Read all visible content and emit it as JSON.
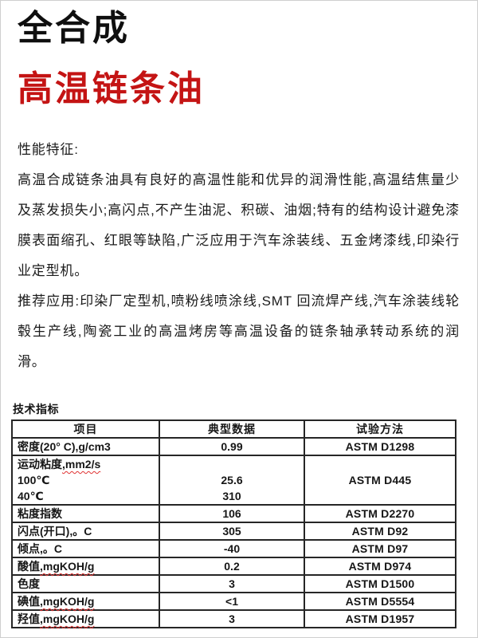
{
  "header": {
    "title_line1": "全合成",
    "title_line2": "高温链条油"
  },
  "performance": {
    "heading": "性能特征:",
    "paragraph": "高温合成链条油具有良好的高温性能和优异的润滑性能,高温结焦量少及蒸发损失小;高闪点,不产生油泥、积碳、油烟;特有的结构设计避免漆膜表面缩孔、红眼等缺陷,广泛应用于汽车涂装线、五金烤漆线,印染行业定型机。"
  },
  "applications": {
    "paragraph": "推荐应用:印染厂定型机,喷粉线喷涂线,SMT 回流焊产线,汽车涂装线轮毂生产线,陶瓷工业的高温烤房等高温设备的链条轴承转动系统的润滑。"
  },
  "specs": {
    "heading": "技术指标",
    "columns": [
      "项目",
      "典型数据",
      "试验方法"
    ],
    "rows": [
      {
        "item": [
          [
            {
              "t": "密度(20° C),g/cm3"
            }
          ]
        ],
        "values": [
          "0.99"
        ],
        "method": "ASTM D1298"
      },
      {
        "item": [
          [
            {
              "t": "运动粘度"
            },
            {
              "t": ",mm2/s",
              "sq": true
            }
          ],
          [
            {
              "t": "100℃"
            }
          ],
          [
            {
              "t": "40℃"
            }
          ]
        ],
        "values": [
          "",
          "25.6",
          "310"
        ],
        "method": "ASTM D445"
      },
      {
        "item": [
          [
            {
              "t": "粘度指数"
            }
          ]
        ],
        "values": [
          "106"
        ],
        "method": "ASTM D2270"
      },
      {
        "item": [
          [
            {
              "t": "闪点(开口),。C"
            }
          ]
        ],
        "values": [
          "305"
        ],
        "method": "ASTM D92"
      },
      {
        "item": [
          [
            {
              "t": "倾点,。C"
            }
          ]
        ],
        "values": [
          "-40"
        ],
        "method": "ASTM D97"
      },
      {
        "item": [
          [
            {
              "t": "酸值"
            },
            {
              "t": ",mgKOH/g",
              "sq": true
            }
          ]
        ],
        "values": [
          "0.2"
        ],
        "method": "ASTM D974"
      },
      {
        "item": [
          [
            {
              "t": "色度"
            }
          ]
        ],
        "values": [
          "3"
        ],
        "method": "ASTM D1500"
      },
      {
        "item": [
          [
            {
              "t": "碘值"
            },
            {
              "t": ",mgKOH/g",
              "sq": true
            }
          ]
        ],
        "values": [
          "<1"
        ],
        "method": "ASTM D5554"
      },
      {
        "item": [
          [
            {
              "t": "羟值"
            },
            {
              "t": ",mgKOH/g",
              "sq": true
            }
          ]
        ],
        "values": [
          "3"
        ],
        "method": "ASTM D1957"
      }
    ]
  },
  "colors": {
    "accent_red": "#c41414",
    "table_border": "#262626",
    "squiggle_red": "#e03333",
    "page_border": "#cfcfcf"
  }
}
